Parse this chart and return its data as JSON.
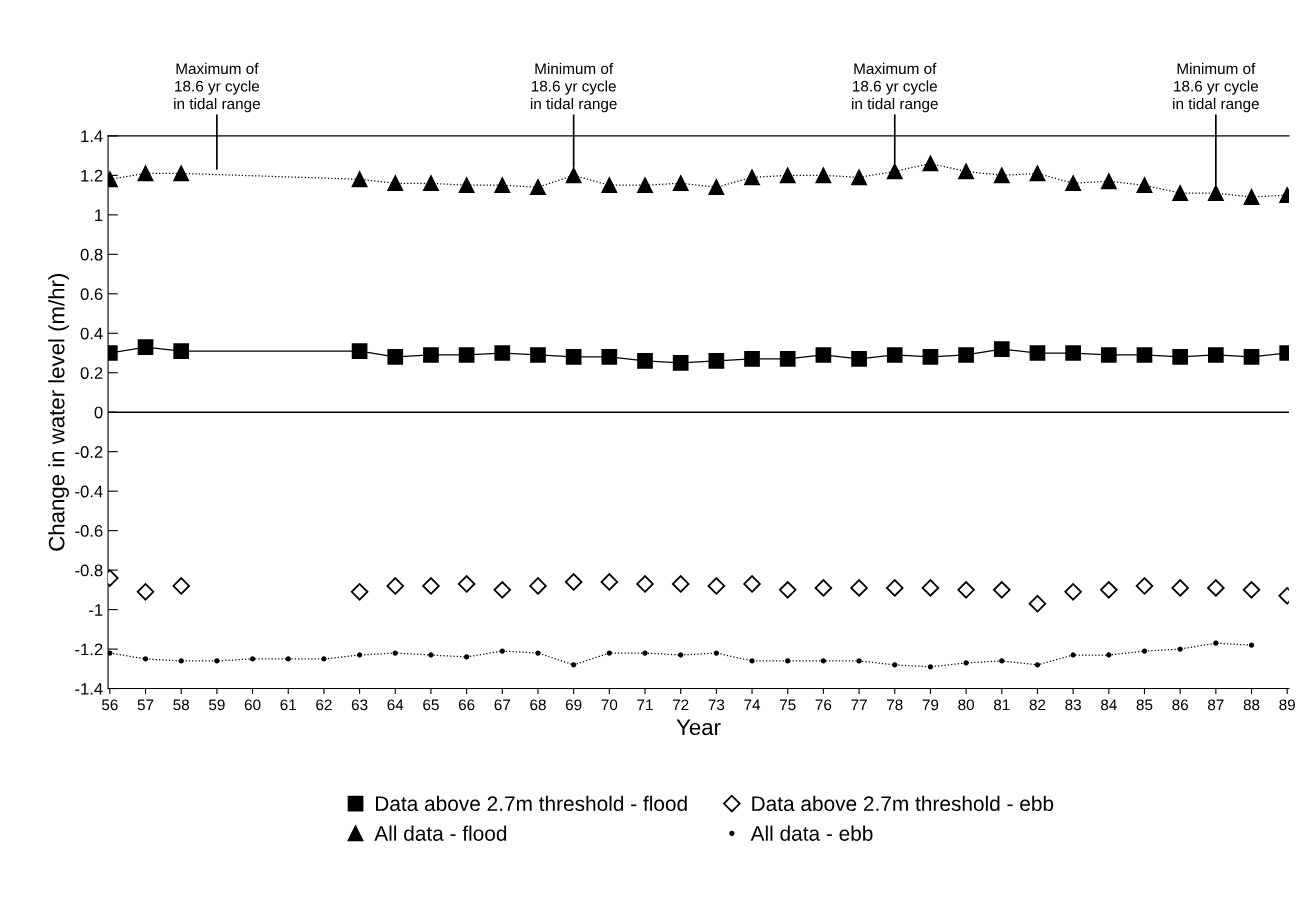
{
  "chart_data": {
    "type": "line",
    "xlabel": "Year",
    "ylabel": "Change in water level (m/hr)",
    "categories": [
      "56",
      "57",
      "58",
      "59",
      "60",
      "61",
      "62",
      "63",
      "64",
      "65",
      "66",
      "67",
      "68",
      "69",
      "70",
      "71",
      "72",
      "73",
      "74",
      "75",
      "76",
      "77",
      "78",
      "79",
      "80",
      "81",
      "82",
      "83",
      "84",
      "85",
      "86",
      "87",
      "88",
      "89"
    ],
    "ylim": [
      -1.4,
      1.4
    ],
    "yticks": [
      -1.4,
      -1.2,
      -1,
      -0.8,
      -0.6,
      -0.4,
      -0.2,
      0,
      0.2,
      0.4,
      0.6,
      0.8,
      1,
      1.2,
      1.4
    ],
    "grid": false,
    "legend": "bottom",
    "series": [
      {
        "name": "Data above 2.7m threshold - flood",
        "color": "#000000",
        "marker": "square",
        "line_style": "solid",
        "values": [
          0.3,
          0.33,
          0.31,
          null,
          null,
          null,
          null,
          0.31,
          0.28,
          0.29,
          0.29,
          0.3,
          0.29,
          0.28,
          0.28,
          0.26,
          0.25,
          0.26,
          0.27,
          0.27,
          0.29,
          0.27,
          0.29,
          0.28,
          0.29,
          0.32,
          0.3,
          0.3,
          0.29,
          0.29,
          0.28,
          0.29,
          0.28,
          0.3
        ]
      },
      {
        "name": "All data - flood",
        "color": "#000000",
        "marker": "triangle",
        "line_style": "dotted",
        "values": [
          1.18,
          1.21,
          1.21,
          null,
          null,
          null,
          null,
          1.18,
          1.16,
          1.16,
          1.15,
          1.15,
          1.14,
          1.2,
          1.15,
          1.15,
          1.16,
          1.14,
          1.19,
          1.2,
          1.2,
          1.19,
          1.22,
          1.26,
          1.22,
          1.2,
          1.21,
          1.16,
          1.17,
          1.15,
          1.11,
          1.11,
          1.09,
          1.1
        ]
      },
      {
        "name": "Data above 2.7m threshold - ebb",
        "color": "#000000",
        "type": "scatter",
        "marker": "diamond",
        "values": [
          -0.84,
          -0.91,
          -0.88,
          null,
          null,
          null,
          null,
          -0.91,
          -0.88,
          -0.88,
          -0.87,
          -0.9,
          -0.88,
          -0.86,
          -0.86,
          -0.87,
          -0.87,
          -0.88,
          -0.87,
          -0.9,
          -0.89,
          -0.89,
          -0.89,
          -0.89,
          -0.9,
          -0.9,
          -0.97,
          -0.91,
          -0.9,
          -0.88,
          -0.89,
          -0.89,
          -0.9,
          -0.93
        ]
      },
      {
        "name": "All data - ebb",
        "color": "#000000",
        "marker": "circle",
        "line_style": "dotted",
        "values": [
          -1.22,
          -1.25,
          -1.26,
          -1.26,
          -1.25,
          -1.25,
          -1.25,
          -1.23,
          -1.22,
          -1.23,
          -1.24,
          -1.21,
          -1.22,
          -1.28,
          -1.22,
          -1.22,
          -1.23,
          -1.22,
          -1.26,
          -1.26,
          -1.26,
          -1.26,
          -1.28,
          -1.29,
          -1.27,
          -1.26,
          -1.28,
          -1.23,
          -1.23,
          -1.21,
          -1.2,
          -1.17,
          -1.18,
          null
        ]
      }
    ],
    "ref_lines": [
      {
        "axis": "y",
        "value": 0,
        "color": "#000000",
        "line_style": "solid"
      }
    ],
    "annotations": [
      {
        "text": "Maximum of\n18.6 yr cycle\nin tidal range",
        "x": "59"
      },
      {
        "text": "Minimum of\n18.6 yr cycle\nin tidal range",
        "x": "69",
        "y": 1.2
      },
      {
        "text": "Maximum of\n18.6 yr cycle\nin tidal range",
        "x": "78",
        "y": 1.22
      },
      {
        "text": "Minimum of\n18.6 yr cycle\nin tidal range",
        "x": "87",
        "y": 1.11
      }
    ]
  }
}
